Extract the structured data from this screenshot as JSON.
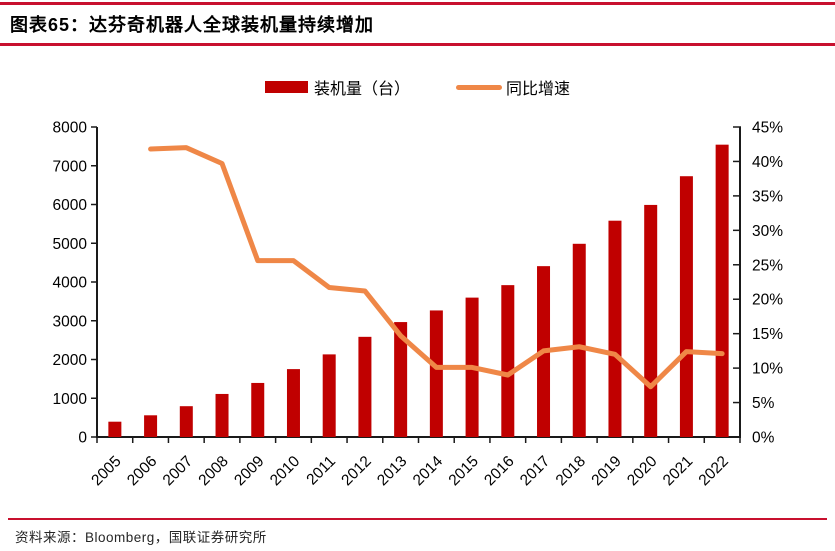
{
  "header": {
    "title": "图表65：达芬奇机器人全球装机量持续增加"
  },
  "legend": {
    "bar_label": "装机量（台）",
    "line_label": "同比增速"
  },
  "footer": {
    "source_text": "资料来源：Bloomberg，国联证券研究所"
  },
  "colors": {
    "bar": "#C00000",
    "line": "#EF8747",
    "rule": "#C8102E",
    "axis": "#1a1a1a",
    "text": "#000000"
  },
  "chart_data": {
    "type": "bar+line combo",
    "title": "图表65：达芬奇机器人全球装机量持续增加",
    "categories": [
      "2005",
      "2006",
      "2007",
      "2008",
      "2009",
      "2010",
      "2011",
      "2012",
      "2013",
      "2014",
      "2015",
      "2016",
      "2017",
      "2018",
      "2019",
      "2020",
      "2021",
      "2022"
    ],
    "series": [
      {
        "name": "装机量（台）",
        "type": "bar",
        "axis": "left",
        "values": [
          395,
          560,
          795,
          1111,
          1395,
          1752,
          2132,
          2585,
          2966,
          3266,
          3597,
          3919,
          4409,
          4986,
          5582,
          5989,
          6730,
          7544
        ]
      },
      {
        "name": "同比增速",
        "type": "line",
        "axis": "right",
        "unit": "%",
        "values": [
          null,
          41.8,
          42.0,
          39.7,
          25.6,
          25.6,
          21.7,
          21.2,
          14.7,
          10.1,
          10.1,
          9.0,
          12.5,
          13.1,
          12.0,
          7.3,
          12.4,
          12.1
        ]
      }
    ],
    "left_axis": {
      "min": 0,
      "max": 8000,
      "step": 1000,
      "tick_labels": [
        "0",
        "1000",
        "2000",
        "3000",
        "4000",
        "5000",
        "6000",
        "7000",
        "8000"
      ]
    },
    "right_axis": {
      "min": 0,
      "max": 45,
      "step": 5,
      "tick_labels": [
        "0%",
        "5%",
        "10%",
        "15%",
        "20%",
        "25%",
        "30%",
        "35%",
        "40%",
        "45%"
      ]
    },
    "grid": false,
    "legend_position": "top",
    "x_label_rotation_deg": -45
  }
}
